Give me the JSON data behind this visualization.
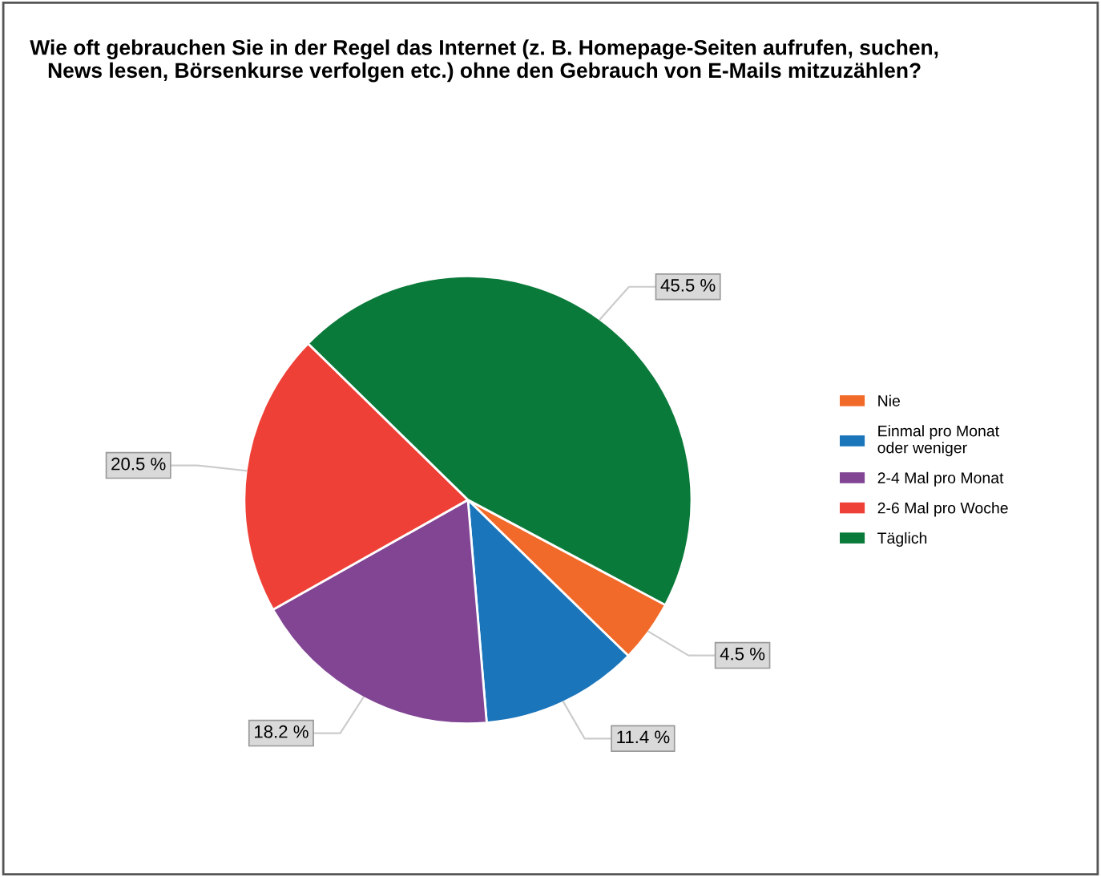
{
  "chart_data": {
    "type": "pie",
    "title": "Wie oft gebrauchen Sie in der Regel das Internet (z. B. Homepage-Seiten aufrufen, suchen, News lesen, Börsenkurse verfolgen etc.) ohne den Gebrauch von E-Mails mitzuzählen?",
    "categories": [
      "Nie",
      "Einmal pro Monat\noder weniger",
      "2-4 Mal pro Monat",
      "2-6 Mal pro Woche",
      "Täglich"
    ],
    "values": [
      4.5,
      11.4,
      18.2,
      20.5,
      45.5
    ],
    "value_labels": [
      "4.5 %",
      "11.4 %",
      "18.2 %",
      "20.5 %",
      "45.5 %"
    ],
    "colors": [
      "#f26a2a",
      "#1b75bb",
      "#814594",
      "#ee4036",
      "#0a7a3a"
    ],
    "legend": "right"
  }
}
